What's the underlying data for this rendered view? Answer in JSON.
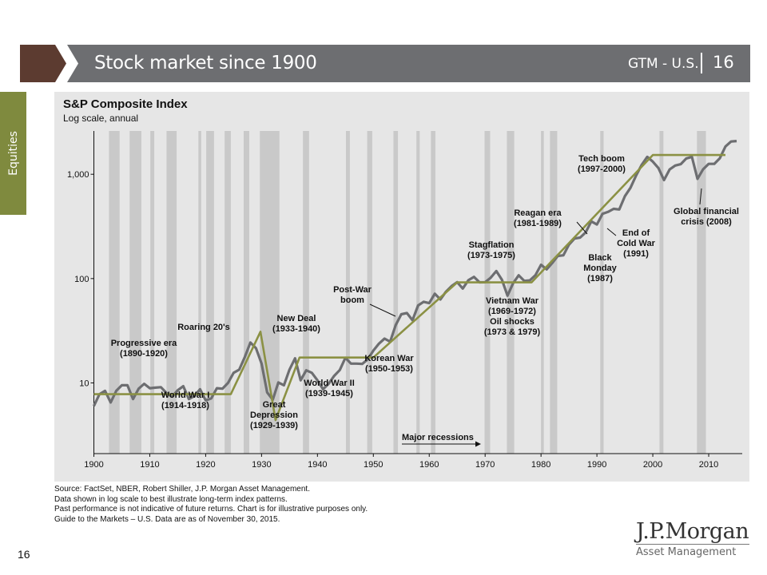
{
  "header": {
    "title": "Stock market since 1900",
    "tag": "GTM - U.S.",
    "page": "16"
  },
  "sidebar": {
    "label": "Equities"
  },
  "colors": {
    "header_bar": "#6d6e71",
    "header_arrow": "#5c3b30",
    "side_tab": "#7f8a3e",
    "panel": "#e6e6e6",
    "recession": "#c9c9c9",
    "index_line": "#6d6e71",
    "trend_line": "#8b9144"
  },
  "chart_data": {
    "type": "line",
    "title": "S&P Composite Index",
    "subtitle": "Log scale, annual",
    "yscale": "log",
    "xlim": [
      1900,
      2016
    ],
    "ylim": [
      2.1,
      2600
    ],
    "x_ticks": [
      1900,
      1910,
      1920,
      1930,
      1940,
      1950,
      1960,
      1970,
      1980,
      1990,
      2000,
      2010
    ],
    "y_ticks": [
      {
        "value": 10,
        "label": "10"
      },
      {
        "value": 100,
        "label": "100"
      },
      {
        "value": 1000,
        "label": "1,000"
      }
    ],
    "recessions": [
      [
        1902.7,
        1904.6
      ],
      [
        1906.4,
        1908.5
      ],
      [
        1910.1,
        1910.8
      ],
      [
        1913.0,
        1914.8
      ],
      [
        1918.7,
        1919.2
      ],
      [
        1920.1,
        1921.5
      ],
      [
        1923.4,
        1924.5
      ],
      [
        1926.8,
        1927.8
      ],
      [
        1929.7,
        1933.2
      ],
      [
        1937.4,
        1938.5
      ],
      [
        1945.1,
        1945.8
      ],
      [
        1948.9,
        1949.8
      ],
      [
        1953.6,
        1954.4
      ],
      [
        1957.7,
        1958.3
      ],
      [
        1960.3,
        1961.1
      ],
      [
        1969.9,
        1970.9
      ],
      [
        1973.9,
        1975.2
      ],
      [
        1980.0,
        1980.5
      ],
      [
        1981.6,
        1982.9
      ],
      [
        1990.6,
        1991.2
      ],
      [
        2001.2,
        2001.9
      ],
      [
        2007.9,
        2009.5
      ]
    ],
    "series": [
      {
        "name": "S&P Composite Index",
        "x": [
          1900,
          1901,
          1902,
          1903,
          1904,
          1905,
          1906,
          1907,
          1908,
          1909,
          1910,
          1911,
          1912,
          1913,
          1914,
          1915,
          1916,
          1917,
          1918,
          1919,
          1920,
          1921,
          1922,
          1923,
          1924,
          1925,
          1926,
          1927,
          1928,
          1929,
          1930,
          1931,
          1932,
          1933,
          1934,
          1935,
          1936,
          1937,
          1938,
          1939,
          1940,
          1941,
          1942,
          1943,
          1944,
          1945,
          1946,
          1947,
          1948,
          1949,
          1950,
          1951,
          1952,
          1953,
          1954,
          1955,
          1956,
          1957,
          1958,
          1959,
          1960,
          1961,
          1962,
          1963,
          1964,
          1965,
          1966,
          1967,
          1968,
          1969,
          1970,
          1971,
          1972,
          1973,
          1974,
          1975,
          1976,
          1977,
          1978,
          1979,
          1980,
          1981,
          1982,
          1983,
          1984,
          1985,
          1986,
          1987,
          1988,
          1989,
          1990,
          1991,
          1992,
          1993,
          1994,
          1995,
          1996,
          1997,
          1998,
          1999,
          2000,
          2001,
          2002,
          2003,
          2004,
          2005,
          2006,
          2007,
          2008,
          2009,
          2010,
          2011,
          2012,
          2013,
          2014,
          2015
        ],
        "values": [
          6.0,
          7.8,
          8.4,
          6.5,
          8.4,
          9.5,
          9.5,
          7.0,
          8.8,
          9.8,
          8.9,
          9.0,
          9.1,
          8.0,
          7.4,
          8.5,
          9.3,
          7.0,
          7.5,
          8.7,
          6.8,
          7.1,
          8.9,
          8.8,
          10.0,
          12.5,
          13.4,
          17.7,
          24.4,
          21.5,
          15.3,
          8.1,
          6.9,
          10.1,
          9.5,
          13.4,
          17.2,
          10.6,
          13.2,
          12.5,
          10.6,
          8.7,
          9.8,
          11.7,
          13.3,
          17.4,
          15.3,
          15.3,
          15.2,
          16.8,
          20.4,
          23.8,
          26.6,
          24.8,
          35.9,
          45.5,
          46.7,
          39.9,
          55.2,
          59.9,
          58.1,
          71.6,
          63.1,
          75.0,
          84.8,
          92.4,
          80.3,
          96.5,
          103.9,
          92.1,
          92.2,
          102.1,
          118.1,
          97.6,
          68.6,
          90.2,
          107.5,
          95.1,
          96.1,
          107.9,
          135.8,
          122.6,
          140.6,
          164.9,
          167.2,
          211.3,
          242.2,
          247.1,
          277.7,
          353.4,
          330.2,
          417.1,
          435.7,
          466.5,
          459.3,
          615.9,
          740.7,
          970.4,
          1229.2,
          1469.3,
          1320.3,
          1148.1,
          879.8,
          1111.9,
          1211.9,
          1248.3,
          1418.3,
          1468.4,
          903.3,
          1115.1,
          1257.6,
          1257.6,
          1426.2,
          1848.4,
          2058.9,
          2080.4
        ]
      },
      {
        "name": "Long-term trend",
        "x": [
          1900,
          1924.5,
          1929.8,
          1932.5,
          1936.8,
          1950,
          1965,
          1978.3,
          2000,
          2013
        ],
        "values": [
          7.8,
          7.8,
          31,
          4.4,
          17.5,
          17.5,
          92,
          92,
          1530,
          1530
        ]
      }
    ],
    "annotations": [
      {
        "lines": [
          "Progressive era",
          "(1890-1920)"
        ]
      },
      {
        "lines": [
          "World War I",
          "(1914-1918)"
        ]
      },
      {
        "lines": [
          "Roaring 20's"
        ]
      },
      {
        "lines": [
          "Great",
          "Depression",
          "(1929-1939)"
        ]
      },
      {
        "lines": [
          "New Deal",
          "(1933-1940)"
        ]
      },
      {
        "lines": [
          "World War II",
          "(1939-1945)"
        ]
      },
      {
        "lines": [
          "Post-War",
          "boom"
        ]
      },
      {
        "lines": [
          "Korean War",
          "(1950-1953)"
        ]
      },
      {
        "lines": [
          "Stagflation",
          "(1973-1975)"
        ]
      },
      {
        "lines": [
          "Vietnam War",
          "(1969-1972)",
          "Oil shocks",
          "(1973 & 1979)"
        ]
      },
      {
        "lines": [
          "Reagan era",
          "(1981-1989)"
        ]
      },
      {
        "lines": [
          "Black",
          "Monday",
          "(1987)"
        ]
      },
      {
        "lines": [
          "End of",
          "Cold War",
          "(1991)"
        ]
      },
      {
        "lines": [
          "Tech boom",
          "(1997-2000)"
        ]
      },
      {
        "lines": [
          "Global financial",
          "crisis (2008)"
        ]
      }
    ],
    "legend": {
      "label": "Major recessions"
    }
  },
  "footnotes": [
    "Source: FactSet, NBER, Robert Shiller, J.P. Morgan Asset Management.",
    "Data shown in log scale to best illustrate long-term index patterns.",
    "Past performance is not indicative of future returns. Chart is for illustrative purposes only.",
    "Guide to the Markets – U.S. Data are as of November 30, 2015."
  ],
  "page_number": "16",
  "logo": {
    "main": "J.P.Morgan",
    "sub": "Asset Management"
  }
}
